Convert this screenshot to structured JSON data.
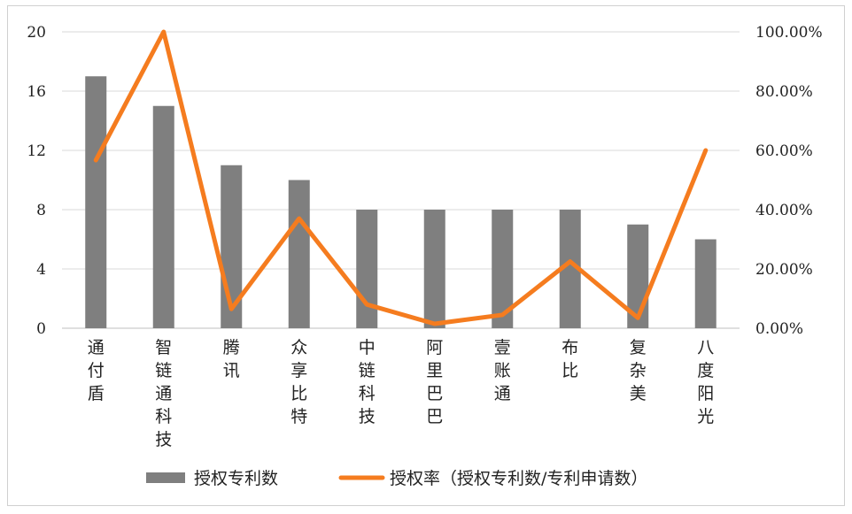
{
  "chart_data": {
    "type": "bar",
    "categories": [
      "通付盾",
      "智链通科技",
      "腾讯",
      "众享比特",
      "中链科技",
      "阿里巴巴",
      "壹账通",
      "布比",
      "复杂美",
      "八度阳光"
    ],
    "series": [
      {
        "name": "授权专利数",
        "type": "bar",
        "axis": "left",
        "color": "#7f7f7f",
        "values": [
          17,
          15,
          11,
          10,
          8,
          8,
          8,
          8,
          7,
          6
        ]
      },
      {
        "name": "授权率（授权专利数/专利申请数）",
        "type": "line",
        "axis": "right",
        "color": "#f57c1f",
        "values": [
          0.567,
          1.0,
          0.065,
          0.37,
          0.08,
          0.015,
          0.045,
          0.225,
          0.035,
          0.6
        ]
      }
    ],
    "left_axis": {
      "ticks": [
        0,
        4,
        8,
        12,
        16,
        20
      ],
      "tick_labels": [
        "0",
        "4",
        "8",
        "12",
        "16",
        "20"
      ],
      "ylim": [
        0,
        20
      ]
    },
    "right_axis": {
      "ticks": [
        0,
        0.2,
        0.4,
        0.6,
        0.8,
        1.0
      ],
      "tick_labels": [
        "0.00%",
        "20.00%",
        "40.00%",
        "60.00%",
        "80.00%",
        "100.00%"
      ],
      "ylim": [
        0,
        1
      ]
    },
    "grid": true,
    "legend": "bottom"
  }
}
